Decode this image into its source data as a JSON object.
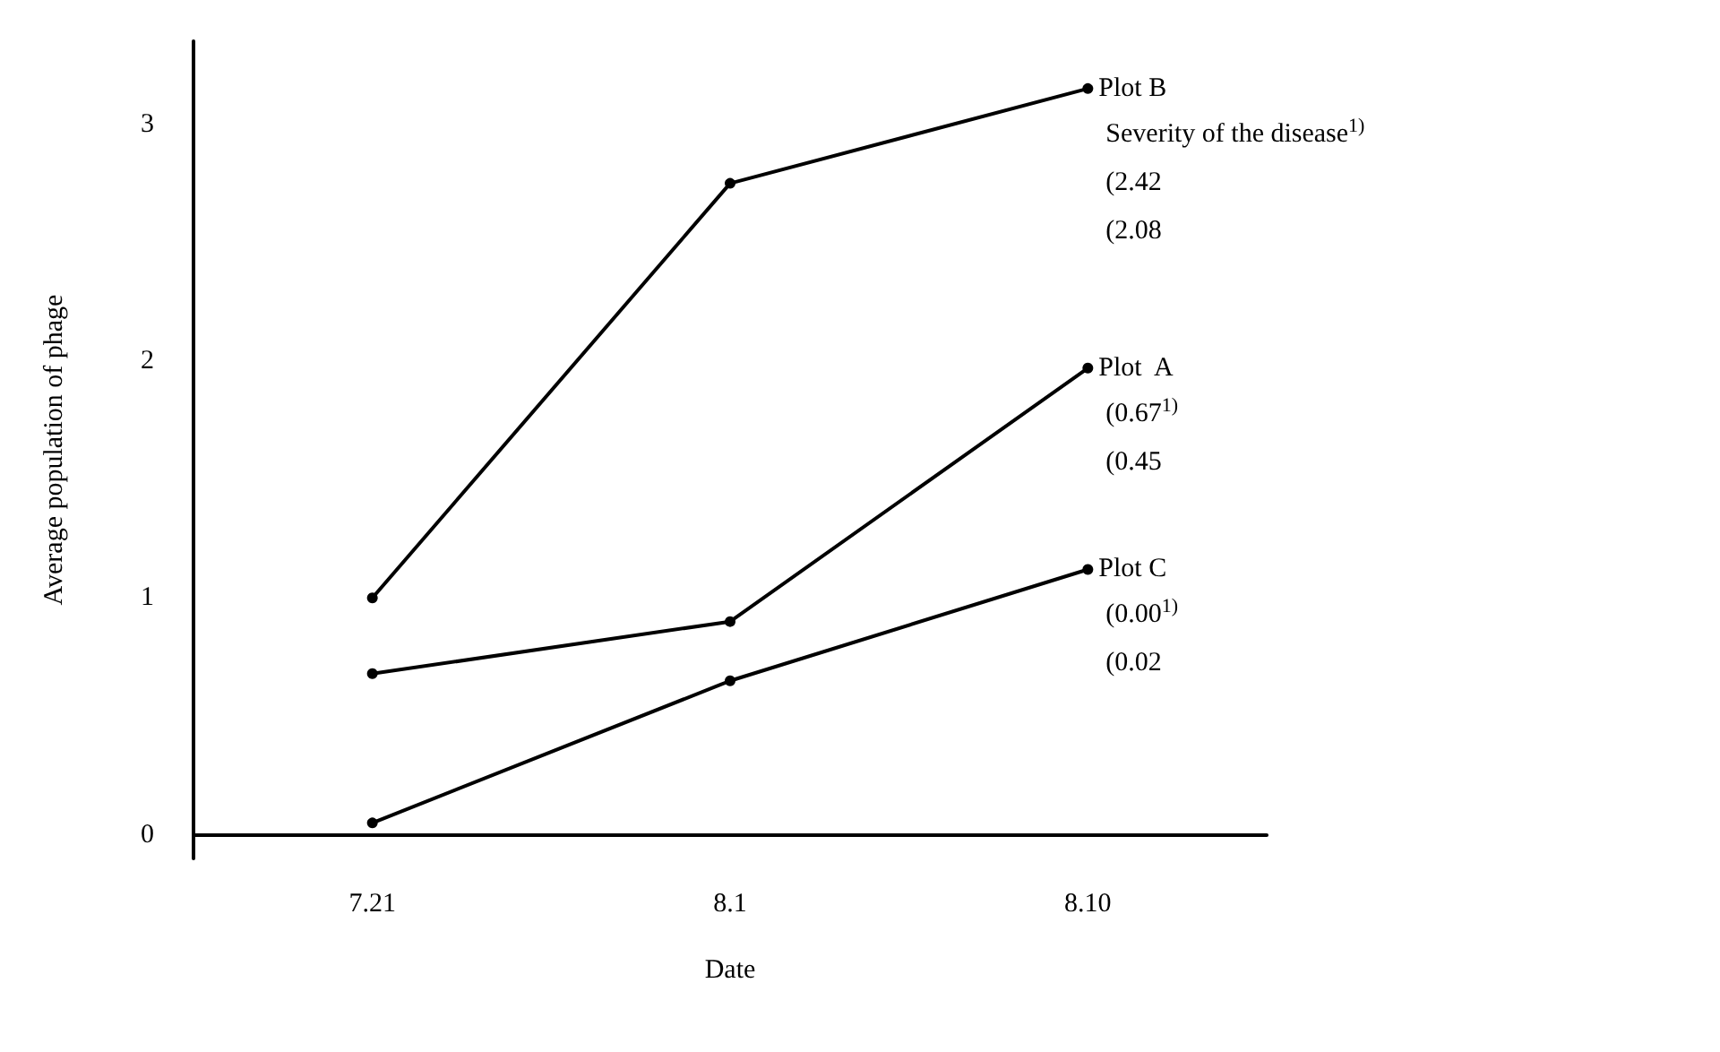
{
  "chart_data": {
    "type": "line",
    "xlabel": "Date",
    "ylabel": "Average population of phage",
    "categories": [
      "7.21",
      "8.1",
      "8.10"
    ],
    "series": [
      {
        "name": "Plot B",
        "color": "#000000",
        "values": [
          1.0,
          2.75,
          3.15
        ]
      },
      {
        "name": "Plot  A",
        "color": "#000000",
        "values": [
          0.68,
          0.9,
          1.97
        ]
      },
      {
        "name": "Plot C",
        "color": "#000000",
        "values": [
          0.05,
          0.65,
          1.12
        ]
      }
    ],
    "ylim": [
      -0.1,
      3.35
    ],
    "yticks": [
      0,
      1,
      2,
      3
    ],
    "grid": false,
    "legend": false,
    "marker": "circle",
    "line_style": "solid",
    "annotations": [
      "Severity of the disease$^{1)}$\n(2.42\n(2.08",
      "(0.67$^{1)}$\n(0.45",
      "(0.00$^{1)}$\n(0.02"
    ]
  }
}
